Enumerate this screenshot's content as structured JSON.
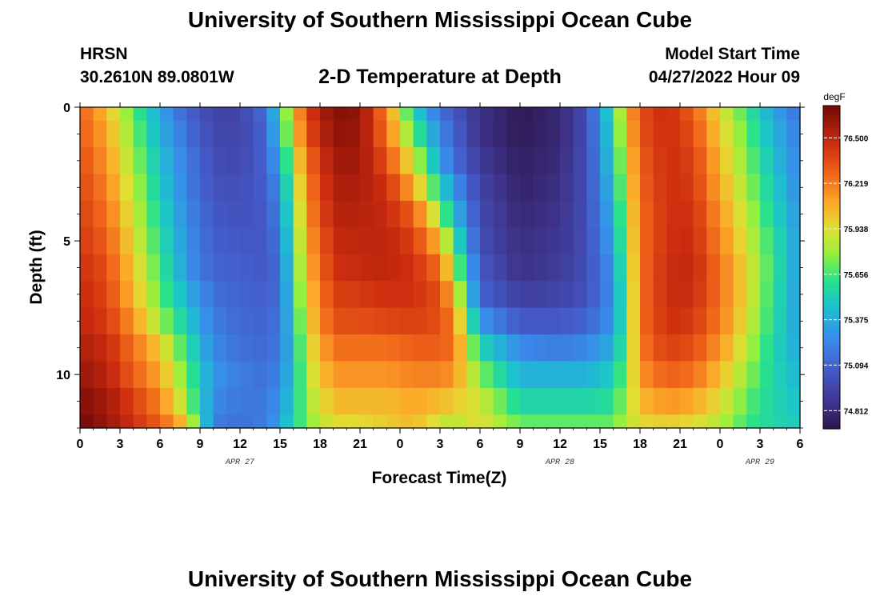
{
  "header": {
    "title": "University of Southern Mississippi Ocean Cube",
    "station": "HRSN",
    "coords": "30.2610N  89.0801W",
    "model_start_label": "Model Start Time",
    "model_start_value": "04/27/2022 Hour 09"
  },
  "footer": {
    "title": "University of Southern Mississippi Ocean Cube"
  },
  "chart_data": {
    "type": "heatmap",
    "title": "2-D Temperature at Depth",
    "xlabel": "Forecast Time(Z)",
    "ylabel": "Depth (ft)",
    "x_range_hours": [
      0,
      54
    ],
    "y_range_ft": [
      0,
      12
    ],
    "x_ticks": [
      {
        "hour": 0,
        "label": "0"
      },
      {
        "hour": 3,
        "label": "3"
      },
      {
        "hour": 6,
        "label": "6"
      },
      {
        "hour": 9,
        "label": "9"
      },
      {
        "hour": 12,
        "label": "12"
      },
      {
        "hour": 15,
        "label": "15"
      },
      {
        "hour": 18,
        "label": "18"
      },
      {
        "hour": 21,
        "label": "21"
      },
      {
        "hour": 24,
        "label": "0"
      },
      {
        "hour": 27,
        "label": "3"
      },
      {
        "hour": 30,
        "label": "6"
      },
      {
        "hour": 33,
        "label": "9"
      },
      {
        "hour": 36,
        "label": "12"
      },
      {
        "hour": 39,
        "label": "15"
      },
      {
        "hour": 42,
        "label": "18"
      },
      {
        "hour": 45,
        "label": "21"
      },
      {
        "hour": 48,
        "label": "0"
      },
      {
        "hour": 51,
        "label": "3"
      },
      {
        "hour": 54,
        "label": "6"
      }
    ],
    "y_ticks": [
      {
        "depth": 0,
        "label": "0"
      },
      {
        "depth": 5,
        "label": "5"
      },
      {
        "depth": 10,
        "label": "10"
      }
    ],
    "date_labels": [
      {
        "hour": 12,
        "label": "APR 27"
      },
      {
        "hour": 36,
        "label": "APR 28"
      },
      {
        "hour": 51,
        "label": "APR 29"
      }
    ],
    "colorbar": {
      "unit": "degF",
      "min": 74.7,
      "max": 76.7,
      "tick_values": [
        76.5,
        76.219,
        75.938,
        75.656,
        75.375,
        75.094,
        74.812
      ],
      "tick_labels": [
        "76.500",
        "76.219",
        "75.938",
        "75.656",
        "75.375",
        "75.094",
        "74.812"
      ]
    },
    "grid": {
      "time_step_hours": 1,
      "depth_step_ft": 1,
      "note": "depth profiles (degF) at 0..12 ft for key forecast hours; interpolated between hours",
      "profiles": [
        {
          "hour": 0,
          "t": [
            76.3,
            76.32,
            76.35,
            76.38,
            76.4,
            76.42,
            76.45,
            76.48,
            76.5,
            76.55,
            76.6,
            76.65,
            76.7
          ]
        },
        {
          "hour": 2,
          "t": [
            76.05,
            76.1,
            76.15,
            76.2,
            76.25,
            76.3,
            76.35,
            76.38,
            76.42,
            76.48,
            76.52,
            76.58,
            76.6
          ]
        },
        {
          "hour": 4,
          "t": [
            75.7,
            75.75,
            75.8,
            75.85,
            75.9,
            75.95,
            76.0,
            76.05,
            76.15,
            76.25,
            76.3,
            76.4,
            76.45
          ]
        },
        {
          "hour": 6,
          "t": [
            75.35,
            75.4,
            75.45,
            75.5,
            75.55,
            75.6,
            75.65,
            75.7,
            75.8,
            76.0,
            76.1,
            76.2,
            76.3
          ]
        },
        {
          "hour": 8,
          "t": [
            75.1,
            75.15,
            75.2,
            75.22,
            75.25,
            75.28,
            75.3,
            75.4,
            75.5,
            75.6,
            75.7,
            75.8,
            76.0
          ]
        },
        {
          "hour": 10,
          "t": [
            74.95,
            74.97,
            75.0,
            75.02,
            75.05,
            75.08,
            75.1,
            75.15,
            75.2,
            75.25,
            75.3,
            75.25,
            75.2
          ]
        },
        {
          "hour": 12,
          "t": [
            74.95,
            74.95,
            74.97,
            75.0,
            75.02,
            75.05,
            75.08,
            75.1,
            75.12,
            75.15,
            75.2,
            75.18,
            75.15
          ]
        },
        {
          "hour": 14,
          "t": [
            75.15,
            75.12,
            75.1,
            75.08,
            75.06,
            75.05,
            75.05,
            75.08,
            75.1,
            75.12,
            75.15,
            75.18,
            75.2
          ]
        },
        {
          "hour": 15,
          "t": [
            75.55,
            75.5,
            75.4,
            75.3,
            75.25,
            75.2,
            75.15,
            75.15,
            75.18,
            75.2,
            75.25,
            75.3,
            75.35
          ]
        },
        {
          "hour": 16,
          "t": [
            76.0,
            75.95,
            75.85,
            75.75,
            75.7,
            75.65,
            75.6,
            75.55,
            75.5,
            75.45,
            75.45,
            75.5,
            75.55
          ]
        },
        {
          "hour": 17,
          "t": [
            76.4,
            76.35,
            76.25,
            76.2,
            76.15,
            76.1,
            76.05,
            76.0,
            75.95,
            75.9,
            75.85,
            75.8,
            75.75
          ]
        },
        {
          "hour": 19,
          "t": [
            76.65,
            76.62,
            76.58,
            76.55,
            76.52,
            76.48,
            76.45,
            76.4,
            76.35,
            76.25,
            76.15,
            76.05,
            75.95
          ]
        },
        {
          "hour": 21,
          "t": [
            76.62,
            76.6,
            76.58,
            76.55,
            76.52,
            76.5,
            76.48,
            76.42,
            76.35,
            76.25,
            76.15,
            76.05,
            75.95
          ]
        },
        {
          "hour": 23,
          "t": [
            76.2,
            76.25,
            76.35,
            76.45,
            76.48,
            76.5,
            76.5,
            76.45,
            76.38,
            76.25,
            76.15,
            76.05,
            76.0
          ]
        },
        {
          "hour": 25,
          "t": [
            75.55,
            75.7,
            75.9,
            76.1,
            76.3,
            76.4,
            76.45,
            76.45,
            76.4,
            76.3,
            76.2,
            76.1,
            76.05
          ]
        },
        {
          "hour": 27,
          "t": [
            75.15,
            75.25,
            75.35,
            75.55,
            75.8,
            76.05,
            76.25,
            76.35,
            76.35,
            76.3,
            76.2,
            76.05,
            75.9
          ]
        },
        {
          "hour": 28,
          "t": [
            75.05,
            75.1,
            75.15,
            75.3,
            75.45,
            75.65,
            75.85,
            76.05,
            76.2,
            76.25,
            76.15,
            76.0,
            75.85
          ]
        },
        {
          "hour": 30,
          "t": [
            74.85,
            74.85,
            74.9,
            74.95,
            74.98,
            75.0,
            75.05,
            75.1,
            75.3,
            75.55,
            75.75,
            75.9,
            75.95
          ]
        },
        {
          "hour": 33,
          "t": [
            74.72,
            74.73,
            74.75,
            74.77,
            74.8,
            74.83,
            74.85,
            74.92,
            75.05,
            75.25,
            75.4,
            75.55,
            75.7
          ]
        },
        {
          "hour": 36,
          "t": [
            74.8,
            74.8,
            74.82,
            74.84,
            74.86,
            74.88,
            74.9,
            74.95,
            75.05,
            75.2,
            75.4,
            75.55,
            75.7
          ]
        },
        {
          "hour": 38,
          "t": [
            75.0,
            75.0,
            75.0,
            75.0,
            75.0,
            75.0,
            75.0,
            75.02,
            75.1,
            75.25,
            75.4,
            75.55,
            75.7
          ]
        },
        {
          "hour": 40,
          "t": [
            75.6,
            75.55,
            75.5,
            75.45,
            75.4,
            75.35,
            75.3,
            75.28,
            75.3,
            75.38,
            75.5,
            75.6,
            75.7
          ]
        },
        {
          "hour": 41,
          "t": [
            76.05,
            76.0,
            75.95,
            75.9,
            75.85,
            75.8,
            75.75,
            75.7,
            75.7,
            75.72,
            75.78,
            75.82,
            75.85
          ]
        },
        {
          "hour": 42,
          "t": [
            76.35,
            76.33,
            76.3,
            76.28,
            76.25,
            76.25,
            76.25,
            76.25,
            76.25,
            76.22,
            76.15,
            76.05,
            75.95
          ]
        },
        {
          "hour": 44,
          "t": [
            76.48,
            76.47,
            76.46,
            76.45,
            76.45,
            76.45,
            76.47,
            76.47,
            76.45,
            76.4,
            76.3,
            76.15,
            76.0
          ]
        },
        {
          "hour": 46,
          "t": [
            76.3,
            76.35,
            76.4,
            76.42,
            76.45,
            76.47,
            76.48,
            76.47,
            76.42,
            76.35,
            76.25,
            76.1,
            75.95
          ]
        },
        {
          "hour": 48,
          "t": [
            75.95,
            76.0,
            76.05,
            76.1,
            76.15,
            76.2,
            76.25,
            76.25,
            76.22,
            76.15,
            76.05,
            75.95,
            75.85
          ]
        },
        {
          "hour": 50,
          "t": [
            75.65,
            75.7,
            75.75,
            75.8,
            75.85,
            75.9,
            75.95,
            75.95,
            75.92,
            75.85,
            75.78,
            75.7,
            75.65
          ]
        },
        {
          "hour": 52,
          "t": [
            75.35,
            75.4,
            75.45,
            75.5,
            75.55,
            75.6,
            75.62,
            75.6,
            75.58,
            75.55,
            75.55,
            75.55,
            75.55
          ]
        },
        {
          "hour": 54,
          "t": [
            75.15,
            75.2,
            75.22,
            75.25,
            75.28,
            75.3,
            75.3,
            75.3,
            75.32,
            75.35,
            75.4,
            75.45,
            75.5
          ]
        }
      ]
    }
  }
}
